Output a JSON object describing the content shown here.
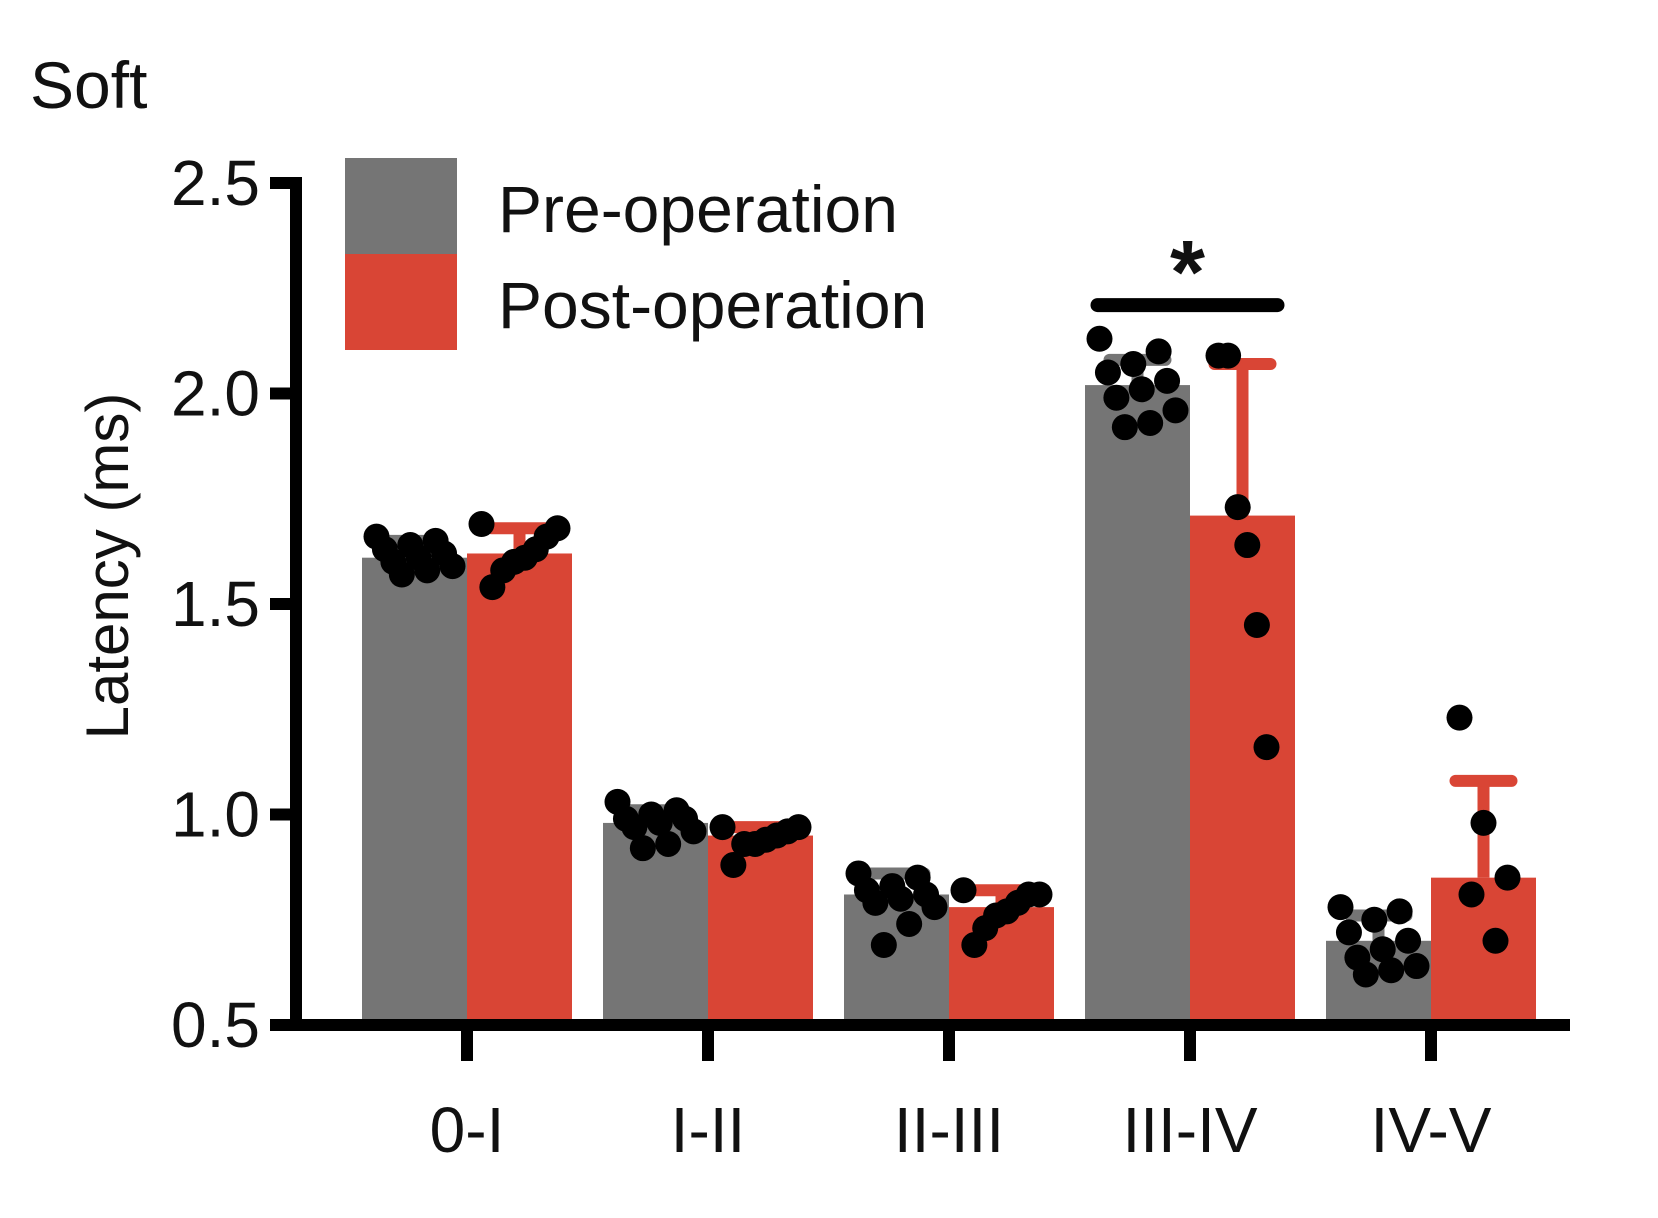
{
  "chart_data": {
    "type": "bar",
    "title": "Soft",
    "xlabel": "",
    "ylabel": "Latency (ms)",
    "ylim": [
      0.5,
      2.5
    ],
    "yticks": [
      "0.5",
      "1.0",
      "1.5",
      "2.0",
      "2.5"
    ],
    "categories": [
      "0-I",
      "I-II",
      "II-III",
      "III-IV",
      "IV-V"
    ],
    "legend_position": "top-left",
    "grid": false,
    "series": [
      {
        "name": "Pre-operation",
        "color": "#757575",
        "values": [
          1.61,
          0.98,
          0.81,
          2.02,
          0.7
        ],
        "errors": [
          0.04,
          0.03,
          0.05,
          0.06,
          0.06
        ],
        "points": [
          [
            1.66,
            1.65,
            1.64,
            1.63,
            1.62,
            1.61,
            1.6,
            1.59,
            1.58,
            1.57
          ],
          [
            1.03,
            1.01,
            1.0,
            0.99,
            0.99,
            0.98,
            0.97,
            0.96,
            0.93,
            0.92
          ],
          [
            0.86,
            0.85,
            0.83,
            0.82,
            0.81,
            0.8,
            0.79,
            0.78,
            0.74,
            0.69
          ],
          [
            2.13,
            2.1,
            2.07,
            2.05,
            2.03,
            2.01,
            1.99,
            1.96,
            1.93,
            1.92
          ],
          [
            0.78,
            0.77,
            0.75,
            0.72,
            0.7,
            0.68,
            0.66,
            0.64,
            0.63,
            0.62
          ]
        ]
      },
      {
        "name": "Post-operation",
        "color": "#d94535",
        "values": [
          1.62,
          0.95,
          0.78,
          1.71,
          0.85
        ],
        "errors": [
          0.06,
          0.02,
          0.04,
          0.36,
          0.23
        ],
        "points": [
          [
            1.69,
            1.68,
            1.66,
            1.63,
            1.61,
            1.6,
            1.58,
            1.54
          ],
          [
            0.97,
            0.97,
            0.96,
            0.95,
            0.94,
            0.93,
            0.93,
            0.88
          ],
          [
            0.82,
            0.81,
            0.81,
            0.79,
            0.77,
            0.76,
            0.73,
            0.69
          ],
          [
            2.09,
            2.09,
            1.73,
            1.64,
            1.45,
            1.16
          ],
          [
            1.23,
            0.98,
            0.85,
            0.81,
            0.7
          ]
        ]
      }
    ],
    "annotations": [
      {
        "text": "*",
        "between": [
          "III-IV:Pre-operation",
          "III-IV:Post-operation"
        ],
        "y": 2.21
      }
    ]
  }
}
